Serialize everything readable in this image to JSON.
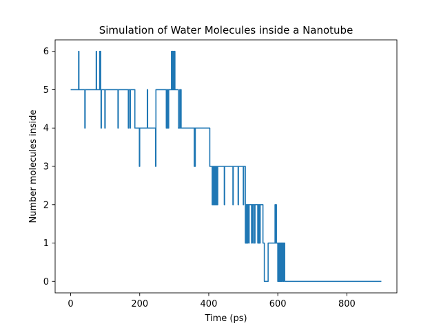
{
  "chart_data": {
    "type": "line",
    "title": "Simulation of Water Molecules inside a Nanotube",
    "xlabel": "Time (ps)",
    "ylabel": "Number molecules inside",
    "xlim": [
      -45,
      945
    ],
    "ylim": [
      -0.3,
      6.3
    ],
    "xticks": [
      0,
      200,
      400,
      600,
      800
    ],
    "yticks": [
      0,
      1,
      2,
      3,
      4,
      5,
      6
    ],
    "xtick_labels": [
      "0",
      "200",
      "400",
      "600",
      "800"
    ],
    "ytick_labels": [
      "0",
      "1",
      "2",
      "3",
      "4",
      "5",
      "6"
    ],
    "grid": false,
    "legend": "none",
    "series": [
      {
        "color": "#1f77b4",
        "step": true,
        "x": [
          0,
          23,
          24,
          41,
          42,
          74,
          75,
          84,
          85,
          86,
          87,
          88,
          89,
          99,
          100,
          137,
          138,
          167,
          168,
          172,
          173,
          185,
          186,
          199,
          200,
          202,
          222,
          223,
          246,
          247,
          251,
          277,
          278,
          280,
          281,
          283,
          284,
          292,
          293,
          295,
          296,
          298,
          299,
          301,
          302,
          311,
          312,
          316,
          317,
          319,
          320,
          358,
          359,
          360,
          361,
          402,
          403,
          410,
          411,
          413,
          414,
          416,
          417,
          419,
          420,
          422,
          423,
          425,
          426,
          445,
          446,
          470,
          471,
          485,
          486,
          488,
          489,
          500,
          501,
          506,
          507,
          509,
          510,
          512,
          513,
          516,
          517,
          524,
          525,
          528,
          529,
          533,
          534,
          542,
          543,
          545,
          546,
          548,
          549,
          557,
          558,
          561,
          562,
          572,
          573,
          592,
          593,
          595,
          596,
          600,
          601,
          603,
          604,
          606,
          607,
          609,
          610,
          612,
          613,
          616,
          617,
          620,
          900
        ],
        "y": [
          5,
          6,
          5,
          4,
          5,
          6,
          5,
          6,
          5,
          6,
          5,
          4,
          5,
          4,
          5,
          4,
          5,
          4,
          5,
          4,
          5,
          5,
          4,
          3,
          4,
          4,
          5,
          4,
          3,
          5,
          5,
          4,
          5,
          4,
          5,
          4,
          5,
          6,
          5,
          6,
          5,
          6,
          5,
          6,
          5,
          5,
          4,
          5,
          4,
          5,
          4,
          3,
          4,
          3,
          4,
          4,
          3,
          2,
          3,
          2,
          3,
          2,
          3,
          2,
          3,
          2,
          3,
          2,
          3,
          2,
          3,
          2,
          3,
          2,
          3,
          3,
          3,
          2,
          3,
          1,
          2,
          1,
          2,
          1,
          2,
          1,
          2,
          1,
          2,
          1,
          2,
          1,
          2,
          1,
          2,
          1,
          2,
          1,
          2,
          1,
          1,
          0,
          0,
          1,
          1,
          2,
          1,
          2,
          1,
          0,
          1,
          0,
          1,
          0,
          1,
          0,
          1,
          0,
          1,
          0,
          1,
          0,
          0
        ]
      }
    ]
  }
}
